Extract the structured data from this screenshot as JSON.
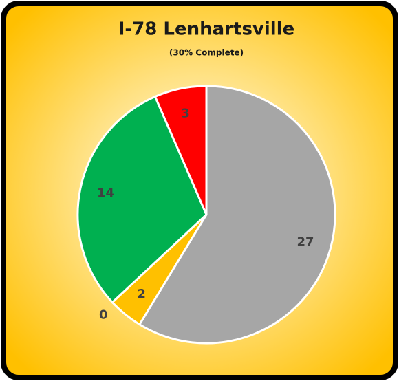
{
  "chart_data": {
    "type": "pie",
    "title": "I-78 Lenhartsville",
    "subtitle": "(30% Complete)",
    "values": [
      27,
      0,
      2,
      14,
      3
    ],
    "colors": [
      "#a6a6a6",
      "#4472c4",
      "#ffc000",
      "#00b050",
      "#ff0000"
    ]
  }
}
